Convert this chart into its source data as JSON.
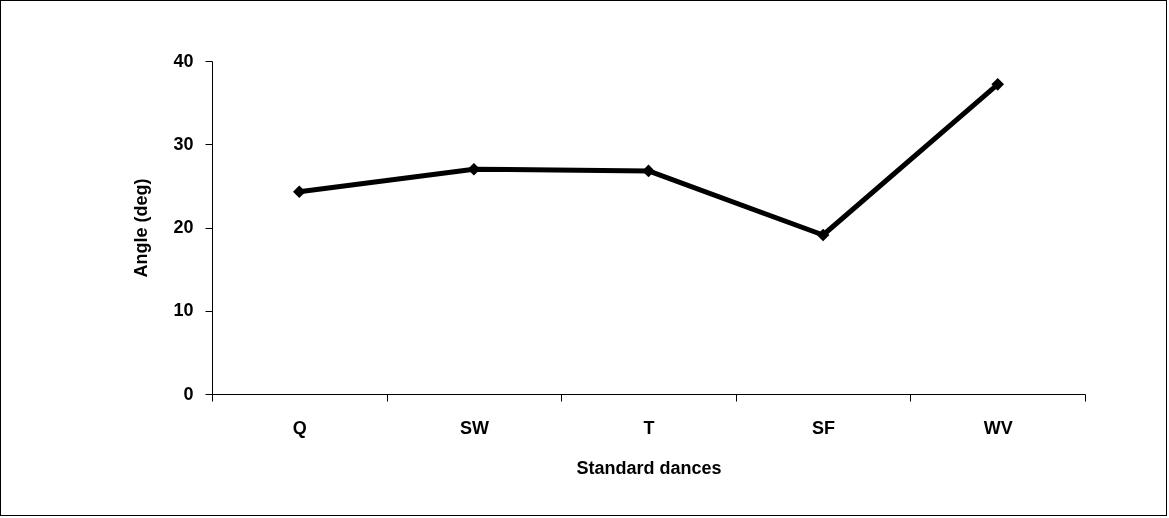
{
  "chart_data": {
    "type": "line",
    "xlabel": "Standard dances",
    "ylabel": "Angle (deg)",
    "categories": [
      "Q",
      "SW",
      "T",
      "SF",
      "WV"
    ],
    "series": [
      {
        "color": "#000000",
        "values": [
          24.3,
          27.0,
          26.8,
          19.1,
          37.2
        ]
      }
    ],
    "ylim": [
      0,
      40
    ],
    "yticks": [
      0,
      10,
      20,
      30,
      40
    ],
    "grid": false,
    "legend": false,
    "marker": "diamond",
    "line_style": "solid"
  }
}
